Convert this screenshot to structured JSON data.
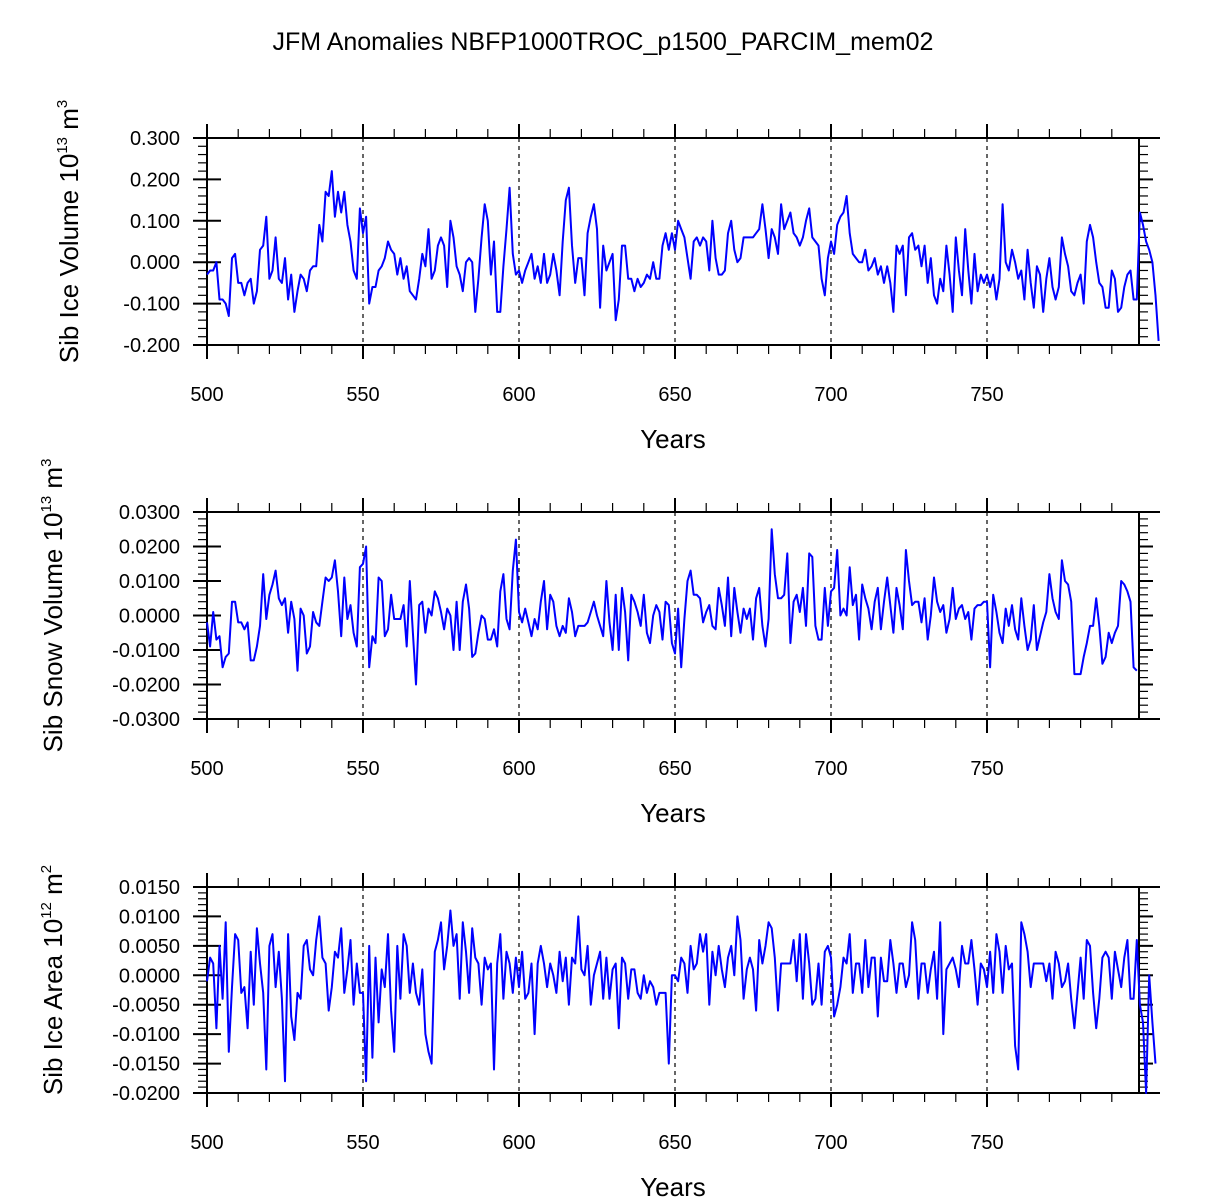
{
  "chart_data": [
    {
      "type": "line",
      "title": "JFM Anomalies NBFP1000TROC_p1500_PARCIM_mem02",
      "xlabel": "Years",
      "ylabel": "Sib Ice Volume 10^13 m^3",
      "ylabel_parts": {
        "main": "Sib Ice Volume 10",
        "exp": "13",
        "unit": " m",
        "unit_exp": "3"
      },
      "xlim": [
        500,
        799
      ],
      "ylim": [
        -0.2,
        0.3
      ],
      "x_ticks": [
        500,
        550,
        600,
        650,
        700,
        750
      ],
      "x_tick_labels": [
        "500",
        "550",
        "600",
        "650",
        "700",
        "750"
      ],
      "y_ticks": [
        0.3,
        0.2,
        0.1,
        0.0,
        -0.1,
        -0.2
      ],
      "y_tick_labels": [
        "0.300",
        "0.200",
        "0.100",
        "0.000",
        "-0.100",
        "-0.200"
      ],
      "y_minor_step": 0.02,
      "x_minor_step": 10,
      "vlines": [
        550,
        600,
        650,
        700,
        750
      ],
      "grid": false,
      "line_color": "#0000ff",
      "x_start": 500,
      "values": [
        -0.03,
        -0.02,
        -0.02,
        0.0,
        -0.09,
        -0.09,
        -0.1,
        -0.13,
        0.01,
        0.02,
        -0.05,
        -0.05,
        -0.08,
        -0.05,
        -0.04,
        -0.1,
        -0.07,
        0.03,
        0.04,
        0.11,
        -0.04,
        -0.02,
        0.06,
        -0.04,
        -0.05,
        0.01,
        -0.09,
        -0.03,
        -0.12,
        -0.07,
        -0.03,
        -0.04,
        -0.07,
        -0.02,
        -0.01,
        -0.01,
        0.09,
        0.05,
        0.17,
        0.16,
        0.22,
        0.11,
        0.17,
        0.12,
        0.17,
        0.09,
        0.05,
        -0.02,
        -0.04,
        0.13,
        0.07,
        0.11,
        -0.1,
        -0.06,
        -0.06,
        -0.02,
        -0.01,
        0.01,
        0.05,
        0.03,
        0.02,
        -0.03,
        0.01,
        -0.04,
        -0.01,
        -0.07,
        -0.08,
        -0.09,
        -0.04,
        0.02,
        -0.01,
        0.08,
        -0.04,
        -0.02,
        0.04,
        0.06,
        0.04,
        -0.06,
        0.1,
        0.06,
        -0.01,
        -0.03,
        -0.07,
        0.0,
        0.01,
        0.0,
        -0.12,
        -0.04,
        0.06,
        0.14,
        0.1,
        -0.03,
        0.05,
        -0.12,
        -0.12,
        -0.01,
        0.08,
        0.18,
        0.02,
        -0.03,
        -0.02,
        -0.05,
        -0.02,
        0.0,
        0.02,
        -0.04,
        -0.01,
        -0.05,
        0.02,
        -0.05,
        -0.03,
        0.02,
        -0.02,
        -0.08,
        0.05,
        0.15,
        0.18,
        0.04,
        -0.05,
        0.01,
        0.01,
        -0.08,
        0.07,
        0.11,
        0.14,
        0.08,
        -0.11,
        0.04,
        -0.02,
        0.0,
        0.02,
        -0.14,
        -0.09,
        0.04,
        0.04,
        -0.04,
        -0.04,
        -0.07,
        -0.04,
        -0.06,
        -0.05,
        -0.03,
        -0.04,
        0.0,
        -0.04,
        -0.04,
        0.04,
        0.07,
        0.03,
        0.07,
        0.03,
        0.1,
        0.08,
        0.06,
        0.01,
        -0.04,
        0.05,
        0.06,
        0.04,
        0.06,
        0.05,
        -0.02,
        0.1,
        0.01,
        -0.03,
        -0.03,
        -0.02,
        0.07,
        0.1,
        0.03,
        0.0,
        0.01,
        0.06,
        0.06,
        0.06,
        0.06,
        0.07,
        0.08,
        0.14,
        0.08,
        0.01,
        0.08,
        0.06,
        0.02,
        0.14,
        0.08,
        0.1,
        0.12,
        0.07,
        0.06,
        0.04,
        0.06,
        0.1,
        0.13,
        0.06,
        0.05,
        0.04,
        -0.04,
        -0.08,
        0.01,
        0.05,
        0.02,
        0.09,
        0.11,
        0.12,
        0.16,
        0.07,
        0.02,
        0.01,
        0.0,
        0.0,
        0.03,
        -0.02,
        -0.01,
        0.01,
        -0.03,
        -0.01,
        -0.05,
        -0.01,
        -0.05,
        -0.12,
        0.04,
        0.02,
        0.04,
        -0.08,
        0.06,
        0.07,
        0.03,
        0.04,
        -0.01,
        0.04,
        -0.05,
        0.01,
        -0.08,
        -0.1,
        -0.04,
        -0.07,
        0.04,
        -0.03,
        -0.12,
        0.06,
        -0.02,
        -0.08,
        0.08,
        -0.02,
        -0.1,
        0.02,
        -0.07,
        -0.03,
        -0.05,
        -0.03,
        -0.06,
        -0.03,
        -0.09,
        -0.04,
        0.14,
        0.0,
        -0.02,
        0.03,
        0.0,
        -0.04,
        -0.02,
        -0.09,
        0.03,
        -0.05,
        -0.11,
        -0.01,
        -0.03,
        -0.12,
        -0.04,
        0.01,
        -0.06,
        -0.09,
        -0.06,
        0.06,
        0.02,
        -0.01,
        -0.07,
        -0.08,
        -0.05,
        -0.03,
        -0.1,
        0.05,
        0.09,
        0.06,
        0.0,
        -0.05,
        -0.06,
        -0.11,
        -0.11,
        -0.02,
        -0.04,
        -0.12,
        -0.11,
        -0.06,
        -0.03,
        -0.02,
        -0.09,
        -0.09,
        0.12,
        0.09,
        0.05,
        0.03,
        0.0,
        -0.08,
        -0.19
      ]
    },
    {
      "type": "line",
      "xlabel": "Years",
      "ylabel": "Sib Snow Volume 10^13 m^3",
      "ylabel_parts": {
        "main": "Sib Snow Volume 10",
        "exp": "13",
        "unit": " m",
        "unit_exp": "3"
      },
      "xlim": [
        500,
        799
      ],
      "ylim": [
        -0.03,
        0.03
      ],
      "x_ticks": [
        500,
        550,
        600,
        650,
        700,
        750
      ],
      "x_tick_labels": [
        "500",
        "550",
        "600",
        "650",
        "700",
        "750"
      ],
      "y_ticks": [
        0.03,
        0.02,
        0.01,
        0.0,
        -0.01,
        -0.02,
        -0.03
      ],
      "y_tick_labels": [
        "0.0300",
        "0.0200",
        "0.0100",
        "0.0000",
        "-0.0100",
        "-0.0200",
        "-0.0300"
      ],
      "y_minor_step": 0.002,
      "x_minor_step": 10,
      "vlines": [
        550,
        600,
        650,
        700,
        750
      ],
      "grid": false,
      "line_color": "#0000ff",
      "x_start": 500,
      "values": [
        -0.002,
        -0.009,
        0.001,
        -0.007,
        -0.006,
        -0.015,
        -0.012,
        -0.011,
        0.004,
        0.004,
        -0.002,
        -0.002,
        -0.004,
        -0.002,
        -0.013,
        -0.013,
        -0.009,
        -0.003,
        0.012,
        -0.001,
        0.006,
        0.009,
        0.013,
        0.005,
        0.003,
        0.005,
        -0.005,
        0.004,
        -0.001,
        -0.016,
        0.002,
        0.0,
        -0.011,
        -0.009,
        0.001,
        -0.002,
        -0.003,
        0.004,
        0.011,
        0.01,
        0.011,
        0.016,
        0.007,
        -0.006,
        0.011,
        -0.001,
        0.003,
        -0.005,
        -0.009,
        0.014,
        0.015,
        0.02,
        -0.015,
        -0.006,
        -0.008,
        0.011,
        0.01,
        -0.006,
        -0.004,
        0.006,
        -0.001,
        -0.001,
        -0.001,
        0.003,
        -0.009,
        0.01,
        -0.005,
        -0.02,
        0.003,
        0.004,
        -0.005,
        0.002,
        0.0,
        0.007,
        0.005,
        0.001,
        -0.004,
        0.002,
        0.0,
        -0.01,
        0.004,
        -0.01,
        0.004,
        0.009,
        0.002,
        -0.012,
        -0.011,
        -0.005,
        0.0,
        -0.001,
        -0.007,
        -0.007,
        -0.004,
        -0.009,
        0.007,
        0.012,
        -0.001,
        -0.004,
        0.013,
        0.022,
        0.001,
        -0.002,
        0.002,
        -0.002,
        -0.006,
        -0.001,
        -0.004,
        0.004,
        0.01,
        -0.004,
        0.006,
        0.004,
        -0.003,
        -0.006,
        -0.003,
        -0.005,
        0.005,
        0.001,
        -0.006,
        -0.003,
        -0.003,
        -0.003,
        -0.002,
        0.001,
        0.004,
        0.0,
        -0.003,
        -0.006,
        0.01,
        -0.002,
        -0.01,
        0.006,
        -0.01,
        0.008,
        0.001,
        -0.013,
        0.006,
        0.004,
        0.001,
        -0.003,
        0.006,
        -0.005,
        -0.008,
        0.0,
        0.003,
        0.001,
        -0.007,
        0.004,
        0.003,
        -0.008,
        -0.011,
        0.002,
        -0.015,
        -0.001,
        0.01,
        0.013,
        0.006,
        0.006,
        0.005,
        -0.002,
        0.001,
        0.003,
        -0.003,
        -0.004,
        0.008,
        0.003,
        -0.003,
        0.011,
        -0.006,
        0.008,
        0.001,
        -0.005,
        0.002,
        -0.001,
        0.002,
        -0.007,
        0.005,
        0.008,
        -0.003,
        -0.009,
        -0.001,
        0.025,
        0.012,
        0.005,
        0.005,
        0.006,
        0.018,
        -0.008,
        0.004,
        0.006,
        0.001,
        0.008,
        -0.003,
        0.018,
        0.017,
        -0.003,
        -0.007,
        -0.007,
        0.008,
        -0.003,
        0.007,
        0.008,
        0.019,
        0.0,
        0.002,
        0.0,
        0.014,
        0.003,
        0.006,
        -0.007,
        0.009,
        0.005,
        0.002,
        -0.004,
        0.004,
        0.008,
        -0.004,
        0.004,
        0.011,
        0.003,
        -0.005,
        0.008,
        0.003,
        -0.004,
        0.019,
        0.01,
        0.003,
        0.004,
        0.004,
        -0.002,
        0.005,
        -0.007,
        0.0,
        0.011,
        0.004,
        0.001,
        0.003,
        -0.005,
        -0.001,
        0.008,
        -0.001,
        0.002,
        0.003,
        -0.001,
        0.001,
        -0.007,
        0.002,
        0.003,
        0.003,
        0.004,
        0.004,
        -0.015,
        0.006,
        0.001,
        -0.005,
        -0.008,
        0.002,
        -0.003,
        0.003,
        -0.004,
        -0.007,
        0.005,
        -0.003,
        -0.01,
        -0.007,
        0.003,
        -0.01,
        -0.006,
        -0.002,
        0.001,
        0.012,
        0.005,
        0.001,
        -0.001,
        0.016,
        0.01,
        0.009,
        0.004,
        -0.017,
        -0.017,
        -0.017,
        -0.012,
        -0.008,
        -0.003,
        -0.003,
        0.005,
        -0.003,
        -0.014,
        -0.012,
        -0.005,
        -0.008,
        -0.005,
        -0.003,
        0.01,
        0.009,
        0.007,
        0.004,
        -0.015,
        -0.016
      ]
    },
    {
      "type": "line",
      "xlabel": "Years",
      "ylabel": "Sib Ice Area 10^12 m^2",
      "ylabel_parts": {
        "main": "Sib Ice Area 10",
        "exp": "12",
        "unit": " m",
        "unit_exp": "2"
      },
      "xlim": [
        500,
        799
      ],
      "ylim": [
        -0.02,
        0.015
      ],
      "x_ticks": [
        500,
        550,
        600,
        650,
        700,
        750
      ],
      "x_tick_labels": [
        "500",
        "550",
        "600",
        "650",
        "700",
        "750"
      ],
      "y_ticks": [
        0.015,
        0.01,
        0.005,
        0.0,
        -0.005,
        -0.01,
        -0.015,
        -0.02
      ],
      "y_tick_labels": [
        "0.0150",
        "0.0100",
        "0.0050",
        "0.0000",
        "-0.0050",
        "-0.0100",
        "-0.0150",
        "-0.0200"
      ],
      "y_minor_step": 0.001,
      "x_minor_step": 10,
      "vlines": [
        550,
        600,
        650,
        700,
        750
      ],
      "grid": false,
      "line_color": "#0000ff",
      "x_start": 500,
      "values": [
        -0.001,
        0.003,
        0.002,
        -0.009,
        0.005,
        -0.004,
        0.009,
        -0.013,
        -0.002,
        0.007,
        0.006,
        -0.003,
        -0.002,
        -0.009,
        0.004,
        -0.005,
        0.008,
        0.002,
        -0.003,
        -0.016,
        0.005,
        0.007,
        -0.002,
        0.004,
        -0.004,
        -0.018,
        0.007,
        -0.007,
        -0.011,
        -0.003,
        -0.004,
        0.005,
        0.006,
        0.001,
        0.0,
        0.006,
        0.01,
        0.003,
        0.002,
        -0.006,
        -0.002,
        0.004,
        0.003,
        0.008,
        -0.003,
        0.001,
        0.006,
        -0.005,
        0.002,
        -0.003,
        -0.003,
        -0.018,
        0.005,
        -0.014,
        0.003,
        -0.008,
        0.001,
        -0.002,
        0.007,
        -0.006,
        -0.013,
        0.005,
        -0.004,
        0.007,
        0.005,
        -0.003,
        0.002,
        -0.003,
        -0.005,
        0.001,
        -0.01,
        -0.013,
        -0.015,
        0.004,
        0.006,
        0.009,
        0.001,
        0.005,
        0.011,
        0.005,
        0.007,
        -0.004,
        0.009,
        0.004,
        -0.003,
        0.008,
        0.003,
        0.002,
        -0.005,
        0.003,
        0.001,
        0.002,
        -0.016,
        0.002,
        0.007,
        -0.004,
        0.004,
        0.002,
        -0.003,
        0.003,
        -0.002,
        0.004,
        -0.004,
        -0.003,
        0.002,
        -0.01,
        0.002,
        0.005,
        0.002,
        -0.002,
        0.002,
        0.0,
        -0.003,
        0.004,
        -0.001,
        0.003,
        -0.005,
        0.003,
        0.002,
        0.01,
        0.001,
        0.0,
        0.005,
        -0.005,
        0.0,
        0.002,
        0.004,
        -0.004,
        0.003,
        -0.004,
        0.001,
        0.002,
        -0.009,
        0.003,
        0.002,
        -0.004,
        0.001,
        0.001,
        -0.003,
        -0.004,
        0.0,
        -0.003,
        -0.001,
        -0.002,
        -0.005,
        -0.003,
        -0.003,
        -0.003,
        -0.015,
        0.0,
        0.0,
        -0.001,
        0.003,
        0.002,
        -0.003,
        0.005,
        0.001,
        0.002,
        0.007,
        0.004,
        0.007,
        -0.005,
        0.004,
        0.0,
        0.005,
        0.001,
        -0.002,
        0.003,
        0.005,
        0.0,
        0.01,
        0.006,
        -0.004,
        0.001,
        0.003,
        0.001,
        -0.006,
        0.006,
        0.002,
        0.005,
        0.009,
        0.008,
        0.003,
        -0.006,
        0.002,
        0.002,
        0.002,
        0.002,
        0.006,
        -0.001,
        0.007,
        -0.004,
        0.007,
        0.002,
        -0.005,
        -0.004,
        0.002,
        -0.005,
        0.004,
        0.005,
        0.003,
        -0.007,
        -0.005,
        -0.002,
        0.003,
        0.002,
        0.007,
        -0.003,
        0.002,
        0.002,
        -0.003,
        0.006,
        -0.002,
        0.003,
        0.003,
        -0.007,
        0.003,
        -0.001,
        -0.001,
        0.006,
        0.002,
        -0.003,
        0.002,
        0.002,
        -0.002,
        0.0,
        0.009,
        0.006,
        -0.004,
        0.002,
        0.002,
        -0.003,
        0.001,
        0.004,
        -0.004,
        0.009,
        -0.01,
        0.001,
        0.002,
        0.003,
        0.001,
        -0.002,
        0.005,
        0.002,
        0.002,
        0.006,
        0.001,
        -0.005,
        0.002,
        0.001,
        -0.002,
        0.004,
        -0.003,
        0.007,
        0.004,
        -0.003,
        0.005,
        0.001,
        0.002,
        -0.012,
        -0.016,
        0.009,
        0.007,
        0.004,
        -0.002,
        0.002,
        0.002,
        0.002,
        0.002,
        -0.001,
        0.002,
        -0.004,
        0.004,
        0.002,
        -0.002,
        -0.001,
        0.002,
        -0.004,
        -0.009,
        -0.003,
        0.003,
        -0.004,
        0.006,
        0.005,
        -0.003,
        -0.009,
        -0.004,
        0.003,
        0.004,
        0.003,
        -0.004,
        0.004,
        0.001,
        -0.002,
        0.003,
        0.006,
        -0.004,
        -0.004,
        0.006,
        -0.005,
        -0.008,
        -0.02,
        0.0,
        -0.008,
        -0.015
      ]
    }
  ]
}
